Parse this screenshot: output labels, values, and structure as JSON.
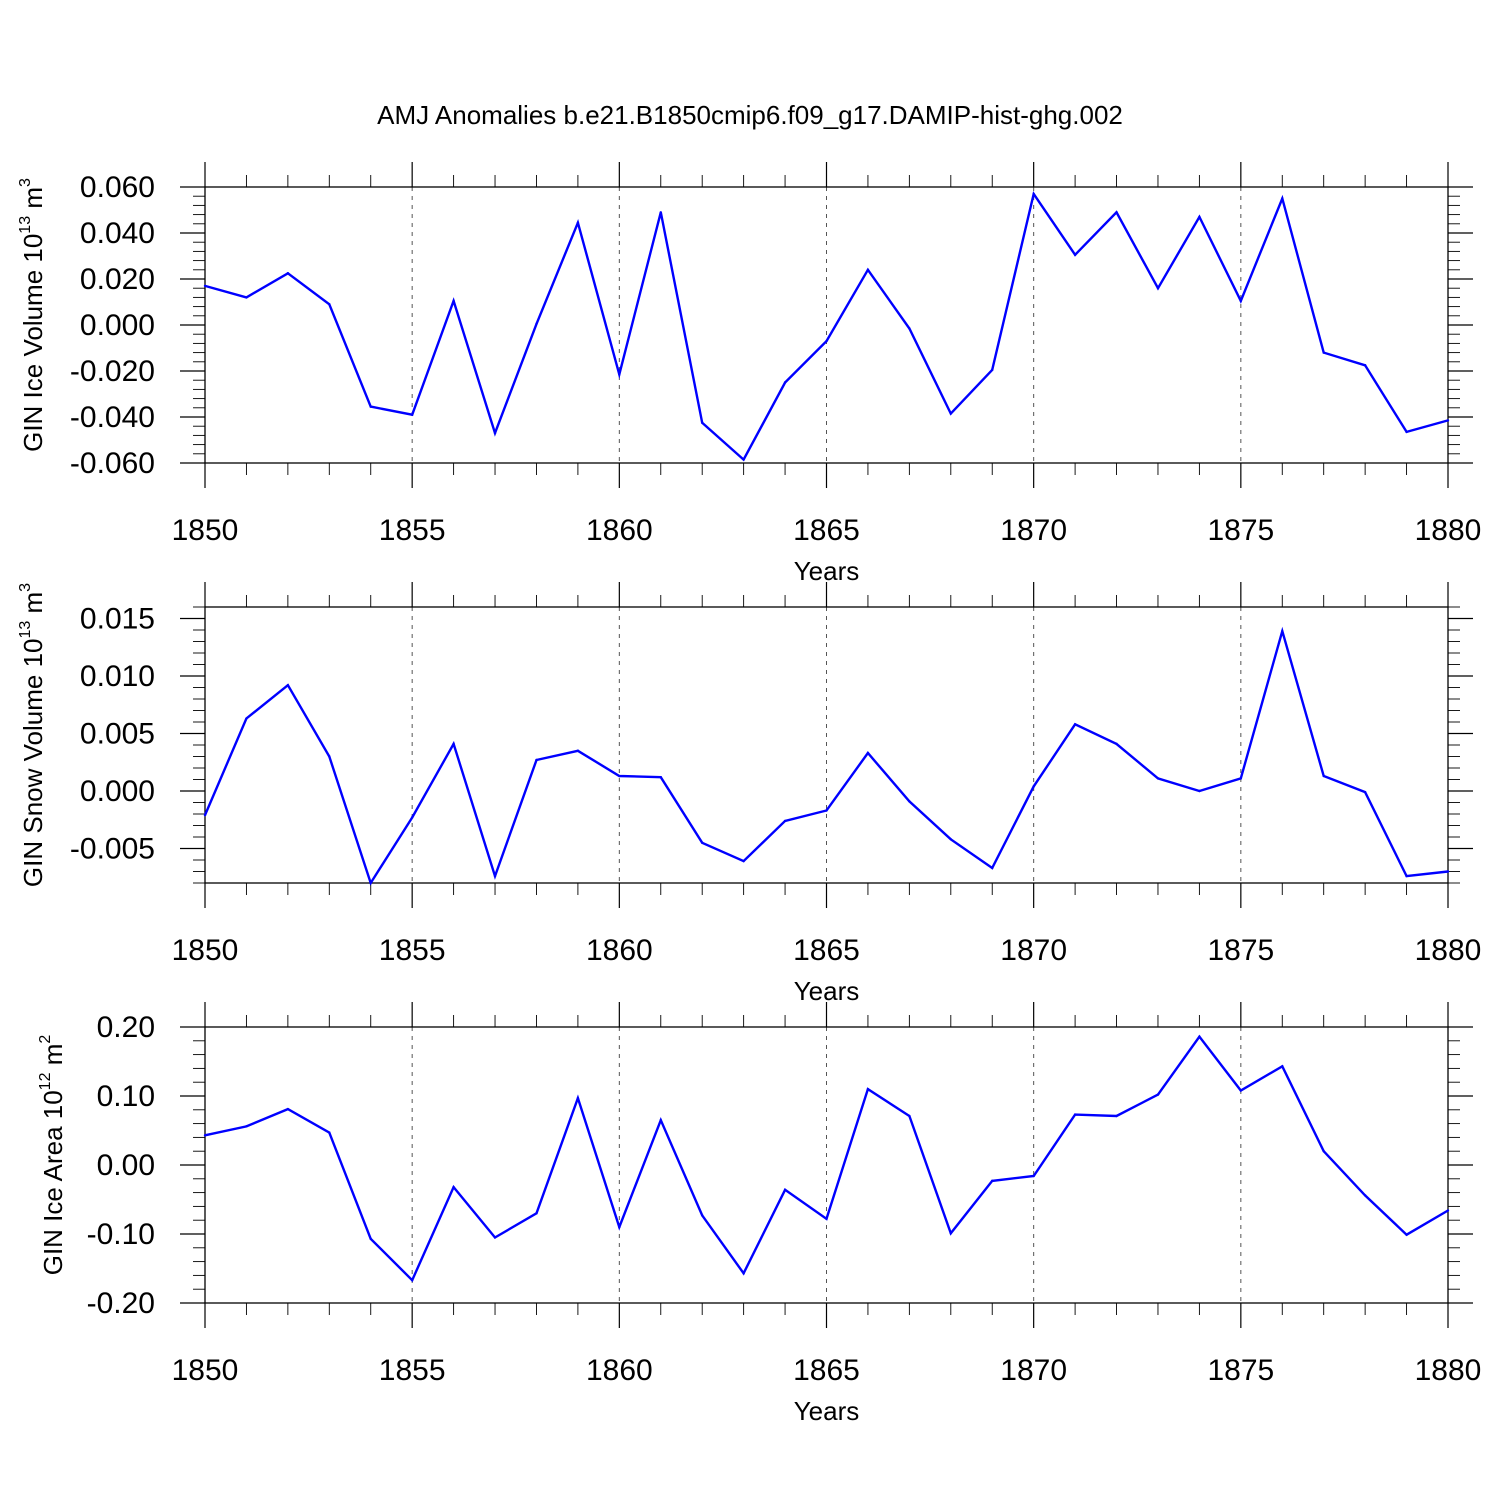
{
  "title": "AMJ Anomalies b.e21.B1850cmip6.f09_g17.DAMIP-hist-ghg.002",
  "colors": {
    "series": "#0000ff",
    "grid": "#555555",
    "axis": "#000000"
  },
  "chart_data": [
    {
      "type": "line",
      "ylabel": "GIN Ice Volume 10",
      "ylabel_exp": "13",
      "ylabel_unit": " m",
      "ylabel_unit_exp": "3",
      "xlabel": "Years",
      "xlim": [
        1850,
        1880
      ],
      "ylim": [
        -0.06,
        0.06
      ],
      "xticks": [
        "1850",
        "1855",
        "1860",
        "1865",
        "1870",
        "1875",
        "1880"
      ],
      "yticks": [
        "-0.060",
        "-0.040",
        "-0.020",
        "0.000",
        "0.020",
        "0.040",
        "0.060"
      ],
      "grid": "vertical dashed at major x ticks",
      "x": [
        1850,
        1851,
        1852,
        1853,
        1854,
        1855,
        1856,
        1857,
        1858,
        1859,
        1860,
        1861,
        1862,
        1863,
        1864,
        1865,
        1866,
        1867,
        1868,
        1869,
        1870,
        1871,
        1872,
        1873,
        1874,
        1875,
        1876,
        1877,
        1878,
        1879,
        1880
      ],
      "values": [
        0.017,
        0.012,
        0.0225,
        0.009,
        -0.0355,
        -0.039,
        0.0105,
        -0.047,
        0.0005,
        0.0445,
        -0.0215,
        0.049,
        -0.0425,
        -0.0585,
        -0.025,
        -0.007,
        0.024,
        -0.0015,
        -0.0385,
        -0.0195,
        0.057,
        0.0305,
        0.049,
        0.016,
        0.047,
        0.0105,
        0.055,
        -0.012,
        -0.0175,
        -0.0465,
        -0.0415
      ]
    },
    {
      "type": "line",
      "ylabel": "GIN Snow Volume 10",
      "ylabel_exp": "13",
      "ylabel_unit": " m",
      "ylabel_unit_exp": "3",
      "xlabel": "Years",
      "xlim": [
        1850,
        1880
      ],
      "ylim": [
        -0.008,
        0.016
      ],
      "xticks": [
        "1850",
        "1855",
        "1860",
        "1865",
        "1870",
        "1875",
        "1880"
      ],
      "yticks": [
        "-0.005",
        "0.000",
        "0.005",
        "0.010",
        "0.015"
      ],
      "grid": "vertical dashed at major x ticks",
      "x": [
        1850,
        1851,
        1852,
        1853,
        1854,
        1855,
        1856,
        1857,
        1858,
        1859,
        1860,
        1861,
        1862,
        1863,
        1864,
        1865,
        1866,
        1867,
        1868,
        1869,
        1870,
        1871,
        1872,
        1873,
        1874,
        1875,
        1876,
        1877,
        1878,
        1879,
        1880
      ],
      "values": [
        -0.0021,
        0.0063,
        0.0092,
        0.003,
        -0.008,
        -0.0023,
        0.0041,
        -0.0074,
        0.0027,
        0.0035,
        0.0013,
        0.0012,
        -0.0045,
        -0.0061,
        -0.0026,
        -0.0017,
        0.0033,
        -0.0009,
        -0.0042,
        -0.0067,
        0.0004,
        0.0058,
        0.0041,
        0.0011,
        0.0,
        0.0011,
        0.0139,
        0.0013,
        -0.0001,
        -0.0074,
        -0.007
      ]
    },
    {
      "type": "line",
      "ylabel": "GIN Ice Area 10",
      "ylabel_exp": "12",
      "ylabel_unit": " m",
      "ylabel_unit_exp": "2",
      "xlabel": "Years",
      "xlim": [
        1850,
        1880
      ],
      "ylim": [
        -0.2,
        0.2
      ],
      "xticks": [
        "1850",
        "1855",
        "1860",
        "1865",
        "1870",
        "1875",
        "1880"
      ],
      "yticks": [
        "-0.20",
        "-0.10",
        "0.00",
        "0.10",
        "0.20"
      ],
      "grid": "vertical dashed at major x ticks",
      "x": [
        1850,
        1851,
        1852,
        1853,
        1854,
        1855,
        1856,
        1857,
        1858,
        1859,
        1860,
        1861,
        1862,
        1863,
        1864,
        1865,
        1866,
        1867,
        1868,
        1869,
        1870,
        1871,
        1872,
        1873,
        1874,
        1875,
        1876,
        1877,
        1878,
        1879,
        1880
      ],
      "values": [
        0.043,
        0.056,
        0.081,
        0.047,
        -0.107,
        -0.167,
        -0.032,
        -0.105,
        -0.07,
        0.097,
        -0.09,
        0.065,
        -0.073,
        -0.157,
        -0.036,
        -0.078,
        0.11,
        0.071,
        -0.099,
        -0.023,
        -0.016,
        0.073,
        0.071,
        0.102,
        0.186,
        0.108,
        0.143,
        0.02,
        -0.044,
        -0.101,
        -0.066
      ]
    }
  ]
}
